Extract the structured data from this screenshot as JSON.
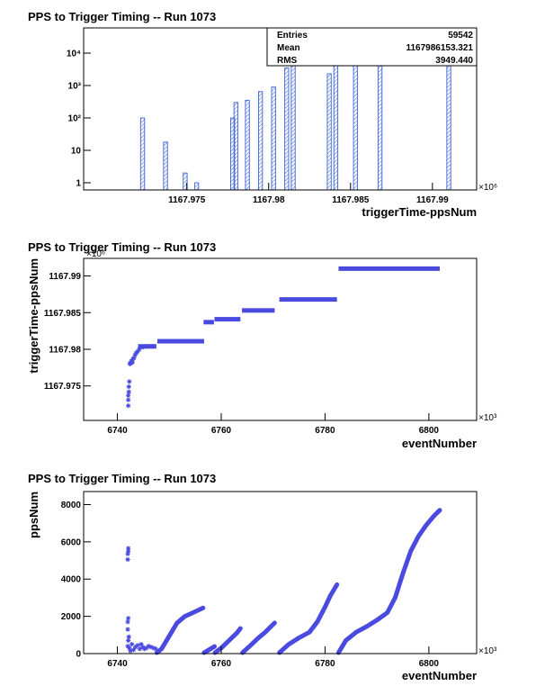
{
  "page": {
    "background": "#ffffff",
    "mark_color": "#4a4ae0",
    "hist_color": "#4a6fd8"
  },
  "chart_data": [
    {
      "type": "bar",
      "title": "PPS to Trigger Timing -- Run 1073",
      "xlabel": "triggerTime-ppsNum",
      "ylabel": "",
      "x_multiplier": "×10⁶",
      "yscale": "log",
      "xlim": [
        1167.9687,
        1167.9927
      ],
      "ylim": [
        0.6,
        60000
      ],
      "xticks": [
        1167.975,
        1167.98,
        1167.985,
        1167.99
      ],
      "xtick_labels": [
        "1167.975",
        "1167.98",
        "1167.985",
        "1167.99"
      ],
      "yticks": [
        1,
        10,
        100,
        1000,
        10000
      ],
      "ytick_labels": [
        "1",
        "10",
        "10²",
        "10³",
        "10⁴"
      ],
      "bin_width": 0.00024,
      "bins": [
        {
          "x": 1167.9723,
          "count": 100
        },
        {
          "x": 1167.9737,
          "count": 18
        },
        {
          "x": 1167.9749,
          "count": 2
        },
        {
          "x": 1167.9756,
          "count": 1
        },
        {
          "x": 1167.9778,
          "count": 100
        },
        {
          "x": 1167.978,
          "count": 300
        },
        {
          "x": 1167.9787,
          "count": 350
        },
        {
          "x": 1167.9795,
          "count": 650
        },
        {
          "x": 1167.9803,
          "count": 900
        },
        {
          "x": 1167.9811,
          "count": 3500
        },
        {
          "x": 1167.9815,
          "count": 9500
        },
        {
          "x": 1167.9837,
          "count": 2300
        },
        {
          "x": 1167.9841,
          "count": 5600
        },
        {
          "x": 1167.9853,
          "count": 7500
        },
        {
          "x": 1167.9868,
          "count": 12000
        },
        {
          "x": 1167.991,
          "count": 20000
        }
      ],
      "stats": {
        "entries_label": "Entries",
        "entries_value": "59542",
        "mean_label": "Mean",
        "mean_value": "1167986153.321",
        "rms_label": "RMS",
        "rms_value": "3949.440"
      },
      "grid": false,
      "legend": "top-right stats box"
    },
    {
      "type": "scatter",
      "title": "PPS to Trigger Timing -- Run 1073",
      "xlabel": "eventNumber",
      "ylabel": "triggerTime-ppsNum",
      "x_multiplier": "×10³",
      "y_multiplier": "×10⁶",
      "xlim": [
        6733.5,
        6809.2
      ],
      "ylim": [
        1167.9703,
        1167.9924
      ],
      "xticks": [
        6740,
        6760,
        6780,
        6800
      ],
      "xtick_labels": [
        "6740",
        "6760",
        "6780",
        "6800"
      ],
      "yticks": [
        1167.975,
        1167.98,
        1167.985,
        1167.99
      ],
      "ytick_labels": [
        "1167.975",
        "1167.98",
        "1167.985",
        "1167.99"
      ],
      "points": [
        [
          6742.1,
          1167.9723
        ],
        [
          6742.1,
          1167.9731
        ],
        [
          6742.1,
          1167.9737
        ],
        [
          6742.2,
          1167.9742
        ],
        [
          6742.2,
          1167.9749
        ],
        [
          6742.3,
          1167.9756
        ],
        [
          6742.4,
          1167.978
        ],
        [
          6742.5,
          1167.9781
        ],
        [
          6742.7,
          1167.9784
        ],
        [
          6742.9,
          1167.9782
        ],
        [
          6743.0,
          1167.9787
        ],
        [
          6743.2,
          1167.9788
        ],
        [
          6743.4,
          1167.9792
        ],
        [
          6743.6,
          1167.9795
        ],
        [
          6743.9,
          1167.9797
        ],
        [
          6744.2,
          1167.98
        ],
        [
          6744.6,
          1167.9803
        ],
        [
          6745.0,
          1167.9803
        ],
        [
          6745.6,
          1167.9804
        ],
        [
          6746.2,
          1167.9804
        ],
        [
          6746.8,
          1167.9804
        ]
      ],
      "segments": [
        {
          "x0": 6744.0,
          "x1": 6747.5,
          "y": 1167.9804
        },
        {
          "x0": 6747.7,
          "x1": 6756.7,
          "y": 1167.9811
        },
        {
          "x0": 6756.6,
          "x1": 6758.6,
          "y": 1167.9837
        },
        {
          "x0": 6758.7,
          "x1": 6763.7,
          "y": 1167.9841
        },
        {
          "x0": 6764.0,
          "x1": 6770.3,
          "y": 1167.9853
        },
        {
          "x0": 6771.2,
          "x1": 6782.3,
          "y": 1167.9868
        },
        {
          "x0": 6782.6,
          "x1": 6802.1,
          "y": 1167.991
        }
      ],
      "grid": false
    },
    {
      "type": "scatter",
      "title": "PPS to Trigger Timing -- Run 1073",
      "xlabel": "eventNumber",
      "ylabel": "ppsNum",
      "x_multiplier": "×10³",
      "xlim": [
        6733.5,
        6809.2
      ],
      "ylim": [
        0,
        8700
      ],
      "xticks": [
        6740,
        6760,
        6780,
        6800
      ],
      "xtick_labels": [
        "6740",
        "6760",
        "6780",
        "6800"
      ],
      "yticks": [
        0,
        2000,
        4000,
        6000,
        8000
      ],
      "ytick_labels": [
        "0",
        "2000",
        "4000",
        "6000",
        "8000"
      ],
      "points": [
        [
          6742.0,
          5050
        ],
        [
          6742.0,
          5350
        ],
        [
          6742.1,
          5500
        ],
        [
          6742.1,
          5650
        ],
        [
          6742.0,
          1300
        ],
        [
          6742.0,
          1700
        ],
        [
          6742.1,
          1900
        ],
        [
          6742.0,
          400
        ],
        [
          6742.1,
          700
        ],
        [
          6742.2,
          900
        ],
        [
          6742.3,
          300
        ],
        [
          6742.5,
          150
        ],
        [
          6742.8,
          500
        ],
        [
          6743.1,
          200
        ],
        [
          6743.5,
          350
        ],
        [
          6743.9,
          450
        ],
        [
          6744.3,
          250
        ],
        [
          6744.6,
          500
        ],
        [
          6744.9,
          350
        ],
        [
          6745.2,
          250
        ],
        [
          6745.6,
          300
        ],
        [
          6746.0,
          400
        ],
        [
          6746.5,
          350
        ],
        [
          6747.0,
          300
        ],
        [
          6747.4,
          250
        ]
      ],
      "curves": [
        {
          "x": [
            6747.6,
            6748.5,
            6750,
            6751.5,
            6753,
            6755,
            6756.5
          ],
          "y": [
            50,
            250,
            950,
            1650,
            2000,
            2250,
            2450
          ]
        },
        {
          "x": [
            6756.7,
            6757.5,
            6758.7
          ],
          "y": [
            50,
            180,
            380
          ]
        },
        {
          "x": [
            6758.8,
            6760,
            6761.5,
            6763,
            6763.7
          ],
          "y": [
            50,
            300,
            700,
            1100,
            1350
          ]
        },
        {
          "x": [
            6764.1,
            6765.5,
            6767,
            6768.5,
            6770.3
          ],
          "y": [
            50,
            400,
            800,
            1150,
            1650
          ]
        },
        {
          "x": [
            6771.2,
            6773,
            6775,
            6777,
            6778.5,
            6780,
            6781,
            6782.3
          ],
          "y": [
            50,
            500,
            850,
            1150,
            1700,
            2500,
            3100,
            3700
          ]
        },
        {
          "x": [
            6782.6,
            6784,
            6786,
            6788,
            6790,
            6792,
            6793.5,
            6795,
            6796.5,
            6798,
            6799.5,
            6801,
            6802.1
          ],
          "y": [
            50,
            700,
            1150,
            1450,
            1800,
            2200,
            3000,
            4300,
            5500,
            6300,
            6900,
            7400,
            7700
          ]
        }
      ],
      "grid": false
    }
  ]
}
